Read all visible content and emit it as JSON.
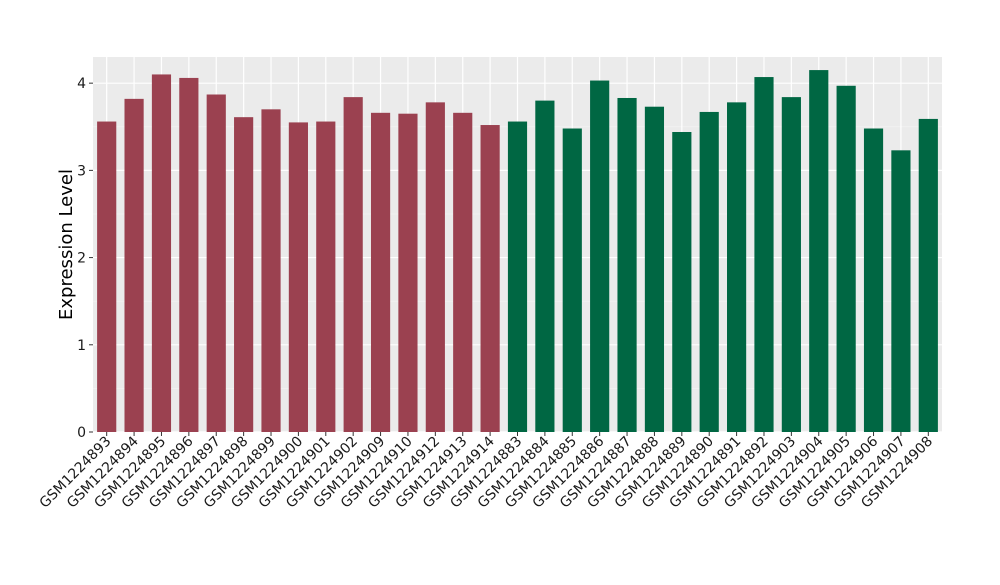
{
  "chart_data": {
    "type": "bar",
    "title": "",
    "xlabel": "",
    "ylabel": "Expression Level",
    "ylim": [
      0,
      4.3
    ],
    "yticks": [
      0,
      1,
      2,
      3,
      4
    ],
    "grid": true,
    "legend": "none",
    "panel_background": "#ebebeb",
    "categories": [
      "GSM1224893",
      "GSM1224894",
      "GSM1224895",
      "GSM1224896",
      "GSM1224897",
      "GSM1224898",
      "GSM1224899",
      "GSM1224900",
      "GSM1224901",
      "GSM1224902",
      "GSM1224909",
      "GSM1224910",
      "GSM1224912",
      "GSM1224913",
      "GSM1224914",
      "GSM1224883",
      "GSM1224884",
      "GSM1224885",
      "GSM1224886",
      "GSM1224887",
      "GSM1224888",
      "GSM1224889",
      "GSM1224890",
      "GSM1224891",
      "GSM1224892",
      "GSM1224903",
      "GSM1224904",
      "GSM1224905",
      "GSM1224906",
      "GSM1224907",
      "GSM1224908"
    ],
    "values": [
      3.56,
      3.82,
      4.1,
      4.06,
      3.87,
      3.61,
      3.7,
      3.55,
      3.56,
      3.84,
      3.66,
      3.65,
      3.78,
      3.66,
      3.52,
      3.56,
      3.8,
      3.48,
      4.03,
      3.83,
      3.73,
      3.44,
      3.67,
      3.78,
      4.07,
      3.84,
      4.15,
      3.97,
      3.48,
      3.23,
      3.59
    ],
    "group_sizes": [
      15,
      16
    ],
    "group_colors": [
      "#9b4150",
      "#006743"
    ]
  }
}
